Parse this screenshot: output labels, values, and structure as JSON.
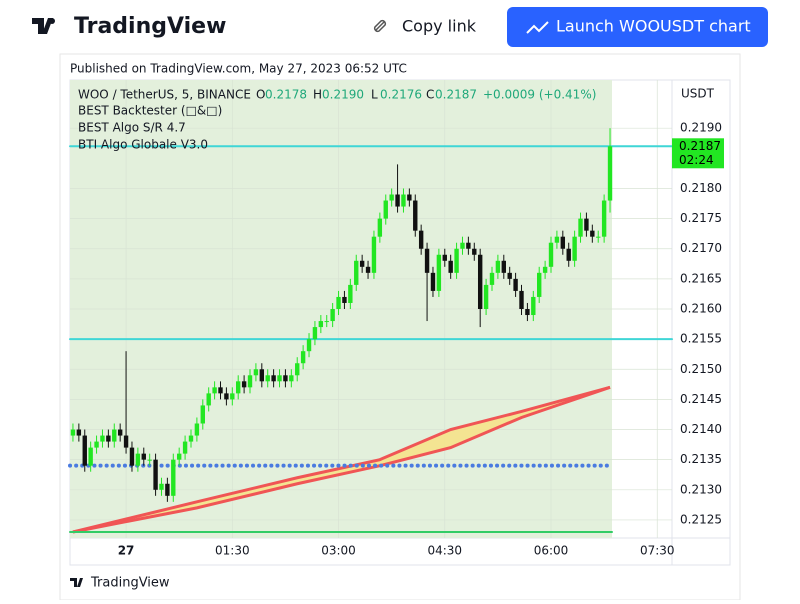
{
  "header": {
    "brand": "TradingView",
    "copy": "Copy link",
    "launch": "Launch WOOUSDT chart"
  },
  "footer": {
    "brand": "TradingView"
  },
  "chart_data": {
    "type": "candlestick",
    "published": "Published on TradingView.com, May 27, 2023 06:52 UTC",
    "symbol": "WOO / TetherUS, 5, BINANCE",
    "ohlc_legend": [
      {
        "key": "O",
        "value": "0.2178"
      },
      {
        "key": "H",
        "value": "0.2190"
      },
      {
        "key": "L",
        "value": "0.2176"
      },
      {
        "key": "C",
        "value": "0.2187"
      }
    ],
    "change": "+0.0009 (+0.41%)",
    "indicators": [
      "BEST Backtester (□&□)",
      "BEST Algo S/R 4.7",
      "BTI Algo Globale V3.0"
    ],
    "currency": "USDT",
    "last_price": {
      "value": 0.2187,
      "label": "0.2187"
    },
    "countdown": "02:24",
    "up_color": "#22e622",
    "down_color": "#111111",
    "open": [
      0.2139,
      0.214,
      0.2139,
      0.2134,
      0.2137,
      0.2138,
      0.2139,
      0.2138,
      0.214,
      0.2139,
      0.2137,
      0.2134,
      0.2136,
      0.2135,
      0.2135,
      0.213,
      0.2131,
      0.2129,
      0.2135,
      0.2136,
      0.2138,
      0.2139,
      0.2141,
      0.2144,
      0.2146,
      0.2147,
      0.2146,
      0.2145,
      0.2146,
      0.2148,
      0.2147,
      0.2149,
      0.215,
      0.2148,
      0.2149,
      0.2148,
      0.2149,
      0.2148,
      0.2149,
      0.2151,
      0.2153,
      0.2155,
      0.2157,
      0.2158,
      0.2158,
      0.216,
      0.2162,
      0.2161,
      0.2164,
      0.2168,
      0.2167,
      0.2166,
      0.2172,
      0.2175,
      0.2178,
      0.2179,
      0.2177,
      0.2179,
      0.2178,
      0.2173,
      0.217,
      0.2166,
      0.2163,
      0.2169,
      0.2168,
      0.2166,
      0.217,
      0.2171,
      0.217,
      0.2169,
      0.216,
      0.2164,
      0.2166,
      0.2168,
      0.2166,
      0.2165,
      0.2163,
      0.216,
      0.2159,
      0.2162,
      0.2166,
      0.2167,
      0.2171,
      0.2172,
      0.217,
      0.2168,
      0.2172,
      0.2175,
      0.2173,
      0.2172,
      0.2172,
      0.2178
    ],
    "high": [
      0.2141,
      0.2141,
      0.214,
      0.2138,
      0.2139,
      0.214,
      0.214,
      0.2141,
      0.2141,
      0.2153,
      0.2138,
      0.2137,
      0.2137,
      0.2136,
      0.2136,
      0.2132,
      0.2132,
      0.2136,
      0.2137,
      0.2139,
      0.214,
      0.2142,
      0.2145,
      0.2147,
      0.2148,
      0.2148,
      0.2147,
      0.2147,
      0.2149,
      0.2149,
      0.215,
      0.2151,
      0.2151,
      0.215,
      0.215,
      0.215,
      0.215,
      0.215,
      0.2152,
      0.2154,
      0.2156,
      0.2158,
      0.2159,
      0.2159,
      0.2161,
      0.2163,
      0.2163,
      0.2165,
      0.2169,
      0.2169,
      0.2168,
      0.2173,
      0.2176,
      0.2179,
      0.218,
      0.2184,
      0.218,
      0.218,
      0.2179,
      0.2174,
      0.2171,
      0.2167,
      0.217,
      0.217,
      0.2169,
      0.2171,
      0.2172,
      0.2172,
      0.2171,
      0.217,
      0.2165,
      0.2167,
      0.2169,
      0.2169,
      0.2167,
      0.2166,
      0.2164,
      0.2161,
      0.2163,
      0.2167,
      0.2168,
      0.2172,
      0.2173,
      0.2173,
      0.2171,
      0.2173,
      0.2176,
      0.2176,
      0.2174,
      0.2173,
      0.2179,
      0.219
    ],
    "low": [
      0.2138,
      0.2138,
      0.2133,
      0.2133,
      0.2136,
      0.2137,
      0.2137,
      0.2137,
      0.2138,
      0.2136,
      0.2133,
      0.2133,
      0.2134,
      0.2134,
      0.2129,
      0.2129,
      0.2128,
      0.2128,
      0.2134,
      0.2135,
      0.2137,
      0.2138,
      0.214,
      0.2143,
      0.2145,
      0.2145,
      0.2144,
      0.2144,
      0.2145,
      0.2146,
      0.2146,
      0.2148,
      0.2147,
      0.2147,
      0.2147,
      0.2147,
      0.2147,
      0.2147,
      0.2148,
      0.215,
      0.2152,
      0.2154,
      0.2156,
      0.2157,
      0.2157,
      0.2159,
      0.216,
      0.216,
      0.2163,
      0.2166,
      0.2165,
      0.2165,
      0.2171,
      0.2174,
      0.2177,
      0.2176,
      0.2176,
      0.2177,
      0.2172,
      0.2169,
      0.2158,
      0.2162,
      0.2162,
      0.2167,
      0.2165,
      0.2165,
      0.2169,
      0.2169,
      0.2168,
      0.2157,
      0.2159,
      0.2163,
      0.2165,
      0.2165,
      0.2164,
      0.2162,
      0.2159,
      0.2158,
      0.2158,
      0.2161,
      0.2165,
      0.2166,
      0.217,
      0.2169,
      0.2167,
      0.2167,
      0.2171,
      0.2172,
      0.2171,
      0.2171,
      0.2171,
      0.2176
    ],
    "close": [
      0.214,
      0.2139,
      0.2134,
      0.2137,
      0.2138,
      0.2139,
      0.2138,
      0.214,
      0.2139,
      0.2137,
      0.2134,
      0.2136,
      0.2135,
      0.2135,
      0.213,
      0.2131,
      0.2129,
      0.2135,
      0.2136,
      0.2138,
      0.2139,
      0.2141,
      0.2144,
      0.2146,
      0.2147,
      0.2146,
      0.2145,
      0.2146,
      0.2148,
      0.2147,
      0.2149,
      0.215,
      0.2148,
      0.2149,
      0.2148,
      0.2149,
      0.2148,
      0.2149,
      0.2151,
      0.2153,
      0.2155,
      0.2157,
      0.2158,
      0.2158,
      0.216,
      0.2162,
      0.2161,
      0.2164,
      0.2168,
      0.2167,
      0.2166,
      0.2172,
      0.2175,
      0.2178,
      0.2179,
      0.2177,
      0.2179,
      0.2178,
      0.2173,
      0.217,
      0.2166,
      0.2163,
      0.2169,
      0.2168,
      0.2166,
      0.217,
      0.2171,
      0.217,
      0.2169,
      0.216,
      0.2164,
      0.2166,
      0.2168,
      0.2166,
      0.2165,
      0.2163,
      0.216,
      0.2159,
      0.2162,
      0.2166,
      0.2167,
      0.2171,
      0.2172,
      0.217,
      0.2168,
      0.2172,
      0.2175,
      0.2173,
      0.2172,
      0.2172,
      0.2178,
      0.2187
    ],
    "levels": [
      {
        "value": 0.2187,
        "color": "#3fd6d6",
        "style": "solid",
        "full": true
      },
      {
        "value": 0.2155,
        "color": "#3fd6d6",
        "style": "solid",
        "full": true
      },
      {
        "value": 0.2134,
        "color": "#4a7be0",
        "style": "dotted",
        "full": false
      },
      {
        "value": 0.2123,
        "color": "#33cc66",
        "style": "solid",
        "full": false
      }
    ],
    "bands": [
      {
        "color": "#f05555",
        "x": [
          0,
          21,
          38,
          52,
          64,
          76,
          91
        ],
        "values": [
          0.2123,
          0.2128,
          0.2132,
          0.2135,
          0.214,
          0.2143,
          0.2147
        ]
      },
      {
        "color": "#f05555",
        "x": [
          0,
          21,
          38,
          52,
          64,
          76,
          91
        ],
        "values": [
          0.2123,
          0.2127,
          0.2131,
          0.2134,
          0.2137,
          0.2142,
          0.2147
        ]
      }
    ],
    "band_fill": "#f5e28a",
    "xlim": [
      -0.5,
      101.5
    ],
    "xticks": [
      {
        "value": 9,
        "label": "27"
      },
      {
        "value": 27,
        "label": "01:30"
      },
      {
        "value": 45,
        "label": "03:00"
      },
      {
        "value": 63,
        "label": "04:30"
      },
      {
        "value": 81,
        "label": "06:00"
      },
      {
        "value": 99,
        "label": "07:30"
      }
    ],
    "ylim": [
      0.2122,
      0.2198
    ],
    "yticks": [
      0.2125,
      {
        "value": 0.213,
        "label": "0.2130"
      },
      0.2135,
      {
        "value": 0.214,
        "label": "0.2140"
      },
      0.2145,
      {
        "value": 0.215,
        "label": "0.2150"
      },
      0.2155,
      {
        "value": 0.216,
        "label": "0.2160"
      },
      0.2165,
      {
        "value": 0.217,
        "label": "0.2170"
      },
      0.2175,
      {
        "value": 0.218,
        "label": "0.2180"
      },
      {
        "value": 0.219,
        "label": "0.2190"
      }
    ],
    "grid": true,
    "session_shade": "#e3f0dc"
  }
}
